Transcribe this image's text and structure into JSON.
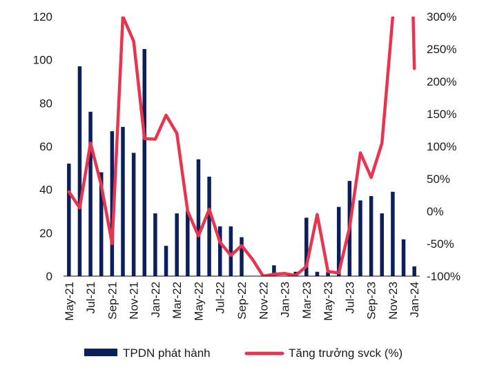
{
  "chart_data": {
    "type": "bar+line",
    "categories": [
      "May-21",
      "Jun-21",
      "Jul-21",
      "Aug-21",
      "Sep-21",
      "Oct-21",
      "Nov-21",
      "Dec-21",
      "Jan-22",
      "Feb-22",
      "Mar-22",
      "Apr-22",
      "May-22",
      "Jun-22",
      "Jul-22",
      "Aug-22",
      "Sep-22",
      "Oct-22",
      "Nov-22",
      "Dec-22",
      "Jan-23",
      "Feb-23",
      "Mar-23",
      "Apr-23",
      "May-23",
      "Jun-23",
      "Jul-23",
      "Aug-23",
      "Sep-23",
      "Oct-23",
      "Nov-23",
      "Dec-23",
      "Jan-24"
    ],
    "x_tick_labels": [
      "May-21",
      "Jul-21",
      "Sep-21",
      "Nov-21",
      "Jan-22",
      "Mar-22",
      "May-22",
      "Jul-22",
      "Sep-22",
      "Nov-22",
      "Jan-23",
      "Mar-23",
      "May-23",
      "Jul-23",
      "Sep-23",
      "Nov-23",
      "Jan-24"
    ],
    "y_left": {
      "min": 0,
      "max": 120,
      "ticks": [
        "0",
        "20",
        "40",
        "60",
        "80",
        "100",
        "120"
      ]
    },
    "y_right": {
      "min": -100,
      "max": 300,
      "ticks": [
        "-100%",
        "-50%",
        "0%",
        "50%",
        "100%",
        "150%",
        "200%",
        "250%",
        "300%"
      ]
    },
    "series": [
      {
        "name": "TPDN phát hành",
        "type": "bar",
        "axis": "left",
        "color": "#0a1f5c",
        "values": [
          52,
          97,
          76,
          48,
          67,
          69,
          57,
          105,
          29,
          14,
          29,
          30,
          54,
          46,
          23,
          23,
          18,
          0,
          0,
          5,
          0,
          2,
          27,
          2,
          2,
          32,
          44,
          35,
          37,
          29,
          39,
          17,
          4.5
        ]
      },
      {
        "name": "Tăng trưởng svck (%)",
        "type": "line",
        "axis": "right",
        "color": "#e8344e",
        "values": [
          30,
          5,
          105,
          40,
          -50,
          300,
          262,
          112,
          111,
          148,
          120,
          0,
          -38,
          3,
          -48,
          -68,
          -53,
          -74,
          -100,
          -97,
          -96,
          -99,
          -85,
          -5,
          -93,
          -95,
          -25,
          90,
          52,
          105,
          300,
          null,
          220
        ]
      }
    ]
  },
  "legend": {
    "bar_label": "TPDN phát hành",
    "line_label": "Tăng trưởng svck (%)"
  }
}
